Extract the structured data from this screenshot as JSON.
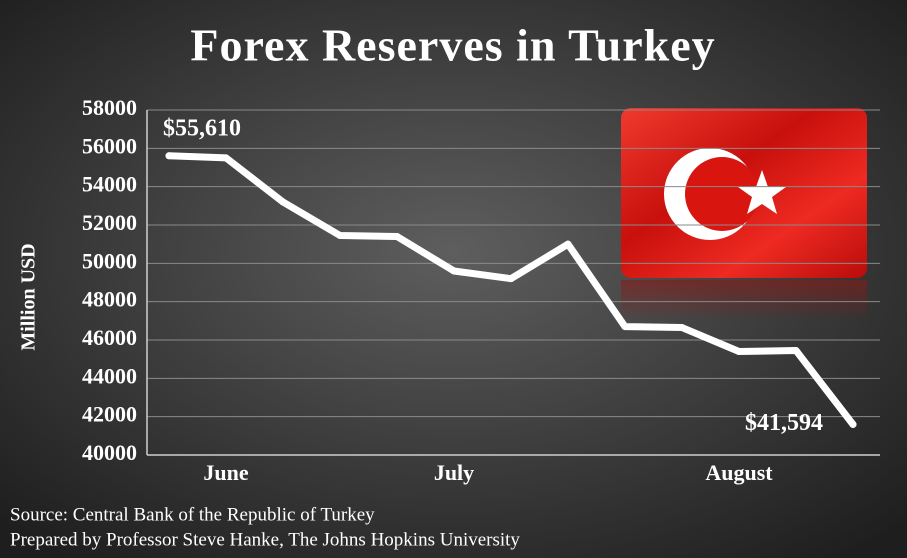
{
  "chart_data": {
    "type": "line",
    "title": "Forex Reserves in Turkey",
    "y_label": "Million USD",
    "categories": [
      null,
      "June",
      null,
      null,
      null,
      "July",
      null,
      null,
      null,
      null,
      "August",
      null,
      null
    ],
    "values": [
      55610,
      55500,
      53200,
      51450,
      51400,
      49600,
      49200,
      51000,
      46700,
      46650,
      45400,
      45450,
      41594
    ],
    "value_labels": [
      "$55,610",
      null,
      null,
      null,
      null,
      null,
      null,
      null,
      null,
      null,
      null,
      null,
      "$41,594"
    ],
    "color": "#ffffff",
    "ylim": [
      40000,
      58000
    ],
    "yticks": [
      40000,
      42000,
      44000,
      46000,
      48000,
      50000,
      52000,
      54000,
      56000,
      58000
    ],
    "grid": true,
    "source": "Source: Central Bank of the Republic of Turkey",
    "credit": "Prepared by Professor Steve Hanke, The Johns Hopkins University"
  }
}
